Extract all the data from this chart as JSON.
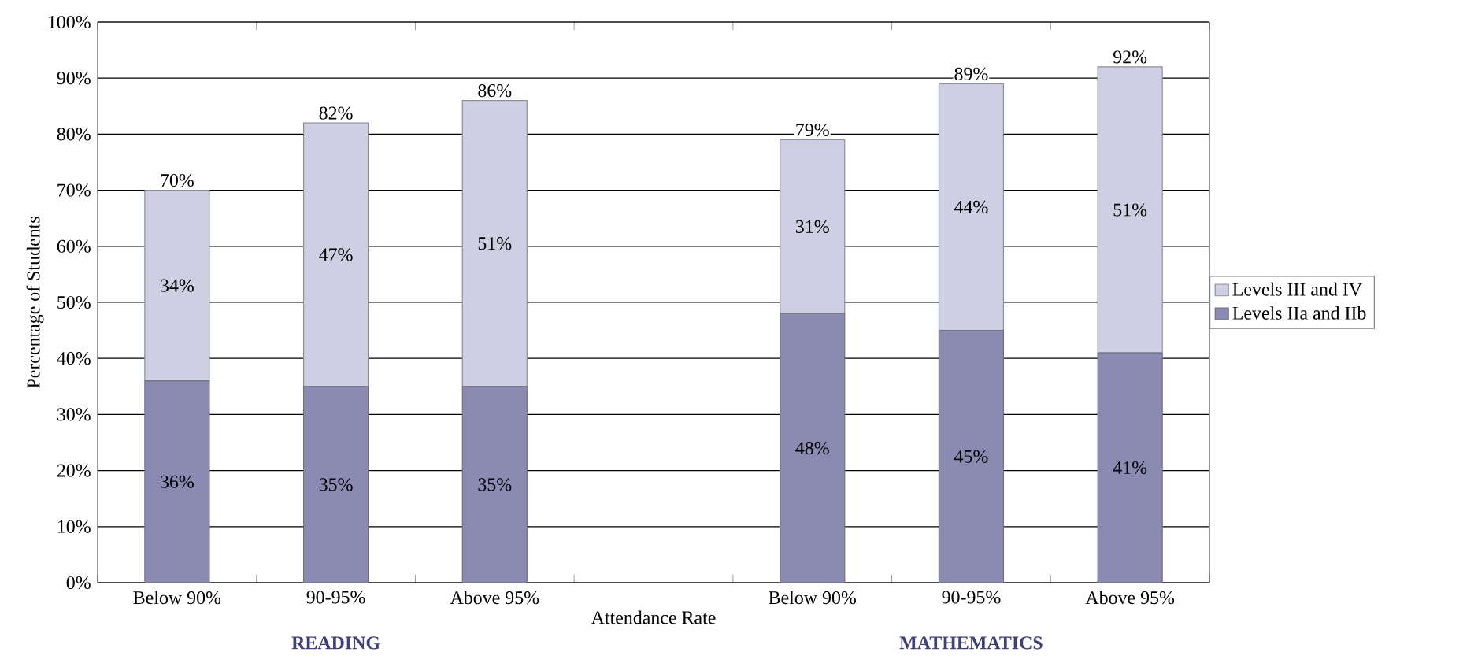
{
  "chart_data": {
    "type": "bar",
    "stacked": true,
    "categories": [
      "Below 90%",
      "90-95%",
      "Above 95%",
      null,
      "Below 90%",
      "90-95%",
      "Above 95%"
    ],
    "series": [
      {
        "name": "Levels IIa and IIb",
        "color": "#8a8ab2",
        "values": [
          36,
          35,
          35,
          null,
          48,
          45,
          41
        ],
        "value_labels": [
          "36%",
          "35%",
          "35%",
          null,
          "48%",
          "45%",
          "41%"
        ]
      },
      {
        "name": "Levels III and IV",
        "color": "#cfcfe4",
        "values": [
          34,
          47,
          51,
          null,
          31,
          44,
          51
        ],
        "value_labels": [
          "34%",
          "47%",
          "51%",
          null,
          "31%",
          "44%",
          "51%"
        ]
      }
    ],
    "totals": [
      "70%",
      "82%",
      "86%",
      null,
      "79%",
      "89%",
      "92%"
    ],
    "xlabel": "Attendance Rate",
    "ylabel": "Percentage of Students",
    "annotations": [
      "READING",
      "MATHEMATICS"
    ],
    "ylim": [
      0,
      100
    ],
    "yticks": [
      {
        "value": 0,
        "label": "0%"
      },
      {
        "value": 10,
        "label": "10%"
      },
      {
        "value": 20,
        "label": "20%"
      },
      {
        "value": 30,
        "label": "30%"
      },
      {
        "value": 40,
        "label": "40%"
      },
      {
        "value": 50,
        "label": "50%"
      },
      {
        "value": 60,
        "label": "60%"
      },
      {
        "value": 70,
        "label": "70%"
      },
      {
        "value": 80,
        "label": "80%"
      },
      {
        "value": 90,
        "label": "90%"
      },
      {
        "value": 100,
        "label": "100%"
      }
    ],
    "grid": "y",
    "legend": "right"
  }
}
